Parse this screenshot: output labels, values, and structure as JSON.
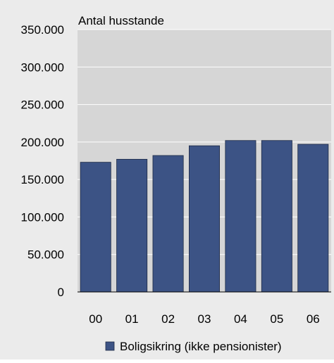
{
  "chart_data": {
    "type": "bar",
    "categories": [
      "00",
      "01",
      "02",
      "03",
      "04",
      "05",
      "06"
    ],
    "series": [
      {
        "name": "Boligsikring (ikke pensionister)",
        "values": [
          173000,
          177000,
          182000,
          195000,
          202000,
          202000,
          197000
        ]
      }
    ],
    "title": "",
    "xlabel": "",
    "ylabel": "Antal husstande",
    "ylim": [
      0,
      350000
    ],
    "yticks": [
      0,
      50000,
      100000,
      150000,
      200000,
      250000,
      300000,
      350000
    ],
    "ytick_labels": [
      "0",
      "50.000",
      "100.000",
      "150.000",
      "200.000",
      "250.000",
      "300.000",
      "350.000"
    ],
    "grid": "horizontal",
    "legend_position": "bottom",
    "colors": {
      "bar": "#3c5385",
      "bar_stroke": "#1e2a45",
      "plot_background": "#d6d6d6",
      "figure_background": "#ebebeb",
      "gridline": "#ffffff"
    }
  }
}
